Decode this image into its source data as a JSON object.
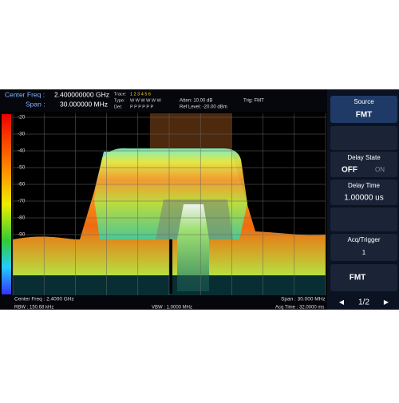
{
  "header": {
    "center_freq_label": "Center Freq :",
    "center_freq": "2.400000000 GHz",
    "span_label": "Span :",
    "span": "30.000000 MHz",
    "trace_label": "Trace:",
    "trace_numbers": "1 2 3 4 5 6",
    "type_label": "Type:",
    "type_values": "W W W W W W",
    "det_label": "Det:",
    "det_values": "P P P P P P",
    "atten": "Atten: 10.00 dB",
    "ref_level": "Ref Level: -20.00 dBm",
    "trig": "Trig: FMT"
  },
  "plot": {
    "y_labels": [
      "-20",
      "-30",
      "-40",
      "-50",
      "-60",
      "-70",
      "-80",
      "-90"
    ]
  },
  "footer": {
    "center_freq": "Center Freq : 2.4000 GHz",
    "span": "Span : 30.000 MHz",
    "rbw": "RBW : 150.68 kHz",
    "vbw": "VBW : 1.0000 MHz",
    "acq_time": "Acq Time : 32.0000 ms"
  },
  "side_panel": {
    "source_title": "Source",
    "source_value": "FMT",
    "delay_state_title": "Delay State",
    "delay_state_off": "OFF",
    "delay_state_on": "ON",
    "delay_time_title": "Delay Time",
    "delay_time_value": "1.00000 us",
    "acq_trigger_title": "Acq/Trigger",
    "acq_trigger_value": "1",
    "fmt_button": "FMT",
    "page": "1/2"
  }
}
